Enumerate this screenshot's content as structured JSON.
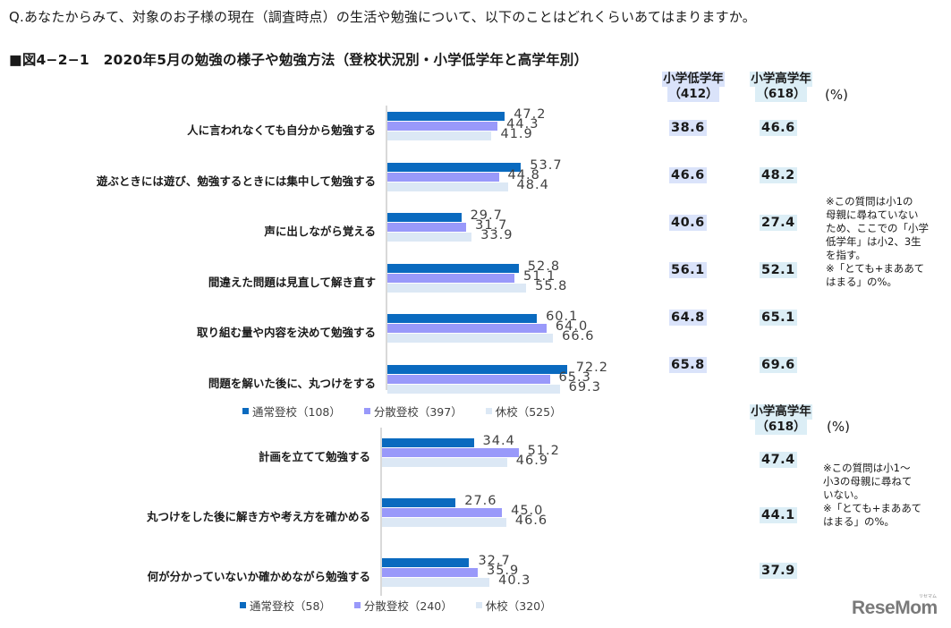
{
  "question": "Q.あなたからみて、対象のお子様の現在（調査時点）の生活や勉強について、以下のことはどれくらいあてはまりますか。",
  "figure_title": "■図4−2−1　2020年5月の勉強の様子や勉強方法（登校状況別・小学低学年と高学年別）",
  "colors": {
    "regular": "#0a6abf",
    "distributed": "#9999fa",
    "closed": "#dce8f5",
    "low_grade_bg": "#dae3fa",
    "high_grade_bg": "#dceef6"
  },
  "chart_data": [
    {
      "type": "bar",
      "orientation": "horizontal",
      "title": "2020年5月の勉強の様子や勉強方法（登校状況別）— 小1〜小6",
      "unit": "%",
      "categories": [
        "人に言われなくても自分から勉強する",
        "遊ぶときには遊び、勉強するときには集中して勉強する",
        "声に出しながら覚える",
        "間違えた問題は見直して解き直す",
        "取り組む量や内容を決めて勉強する",
        "問題を解いた後に、丸つけをする"
      ],
      "series": [
        {
          "name": "通常登校（108）",
          "color": "#0a6abf",
          "values": [
            47.2,
            53.7,
            29.7,
            52.8,
            60.1,
            72.2
          ]
        },
        {
          "name": "分散登校（397）",
          "color": "#9999fa",
          "values": [
            44.3,
            44.8,
            31.7,
            51.1,
            64.0,
            65.3
          ]
        },
        {
          "name": "休校（525）",
          "color": "#dce8f5",
          "values": [
            41.9,
            48.4,
            33.9,
            55.8,
            66.6,
            69.3
          ]
        }
      ],
      "legend_position": "bottom",
      "grid": false
    },
    {
      "type": "table",
      "title": "学年別",
      "unit": "(%)",
      "columns": [
        "小学低学年（412）",
        "小学高学年（618）"
      ],
      "rows": [
        {
          "label": "人に言われなくても自分から勉強する",
          "values": [
            38.6,
            46.6
          ]
        },
        {
          "label": "遊ぶときには遊び、勉強するときには集中して勉強する",
          "values": [
            46.6,
            48.2
          ]
        },
        {
          "label": "声に出しながら覚える",
          "values": [
            40.6,
            27.4
          ]
        },
        {
          "label": "間違えた問題は見直して解き直す",
          "values": [
            56.1,
            52.1
          ]
        },
        {
          "label": "取り組む量や内容を決めて勉強する",
          "values": [
            64.8,
            65.1
          ]
        },
        {
          "label": "問題を解いた後に、丸つけをする",
          "values": [
            65.8,
            69.6
          ]
        }
      ]
    },
    {
      "type": "bar",
      "orientation": "horizontal",
      "title": "2020年5月の勉強方法（登校状況別）— 小4〜小6",
      "unit": "%",
      "categories": [
        "計画を立てて勉強する",
        "丸つけをした後に解き方や考え方を確かめる",
        "何が分かっていないか確かめながら勉強する"
      ],
      "series": [
        {
          "name": "通常登校（58）",
          "color": "#0a6abf",
          "values": [
            34.4,
            27.6,
            32.7
          ]
        },
        {
          "name": "分散登校（240）",
          "color": "#9999fa",
          "values": [
            51.2,
            45.0,
            35.9
          ]
        },
        {
          "name": "休校（320）",
          "color": "#dce8f5",
          "values": [
            46.9,
            46.6,
            40.3
          ]
        }
      ],
      "legend_position": "bottom",
      "grid": false
    },
    {
      "type": "table",
      "title": "学年別（高学年のみ）",
      "unit": "(%)",
      "columns": [
        "小学高学年（618）"
      ],
      "rows": [
        {
          "label": "計画を立てて勉強する",
          "values": [
            47.4
          ]
        },
        {
          "label": "丸つけをした後に解き方や考え方を確かめる",
          "values": [
            44.1
          ]
        },
        {
          "label": "何が分かっていないか確かめながら勉強する",
          "values": [
            37.9
          ]
        }
      ]
    }
  ],
  "top": {
    "categories": [
      "人に言われなくても自分から勉強する",
      "遊ぶときには遊び、勉強するときには集中して勉強する",
      "声に出しながら覚える",
      "間違えた問題は見直して解き直す",
      "取り組む量や内容を決めて勉強する",
      "問題を解いた後に、丸つけをする"
    ],
    "values": [
      [
        "47.2",
        "44.3",
        "41.9"
      ],
      [
        "53.7",
        "44.8",
        "48.4"
      ],
      [
        "29.7",
        "31.7",
        "33.9"
      ],
      [
        "52.8",
        "51.1",
        "55.8"
      ],
      [
        "60.1",
        "64.0",
        "66.6"
      ],
      [
        "72.2",
        "65.3",
        "69.3"
      ]
    ],
    "legend": [
      "通常登校（108）",
      "分散登校（397）",
      "休校（525）"
    ],
    "table_head_low": [
      "小学低学年",
      "（412）"
    ],
    "table_head_high": [
      "小学高学年",
      "（618）"
    ],
    "pct": "(%)",
    "low": [
      "38.6",
      "46.6",
      "40.6",
      "56.1",
      "64.8",
      "65.8"
    ],
    "high": [
      "46.6",
      "48.2",
      "27.4",
      "52.1",
      "65.1",
      "69.6"
    ],
    "note": "※この質問は小1の\n母親に尋ねていない\nため、ここでの「小学\n低学年」は小2、3生\nを指す。\n※「とても+まああて\nはまる」の%。"
  },
  "bottom": {
    "categories": [
      "計画を立てて勉強する",
      "丸つけをした後に解き方や考え方を確かめる",
      "何が分かっていないか確かめながら勉強する"
    ],
    "values": [
      [
        "34.4",
        "51.2",
        "46.9"
      ],
      [
        "27.6",
        "45.0",
        "46.6"
      ],
      [
        "32.7",
        "35.9",
        "40.3"
      ]
    ],
    "legend": [
      "通常登校（58）",
      "分散登校（240）",
      "休校（320）"
    ],
    "table_head_high": [
      "小学高学年",
      "（618）"
    ],
    "pct": "(%)",
    "high": [
      "47.4",
      "44.1",
      "37.9"
    ],
    "note": "※この質問は小1〜\n小3の母親に尋ねて\nいない。\n※「とても+まああて\nはまる」の%。"
  },
  "logo": {
    "text": "ReseMom",
    "sub": "リセマム"
  }
}
